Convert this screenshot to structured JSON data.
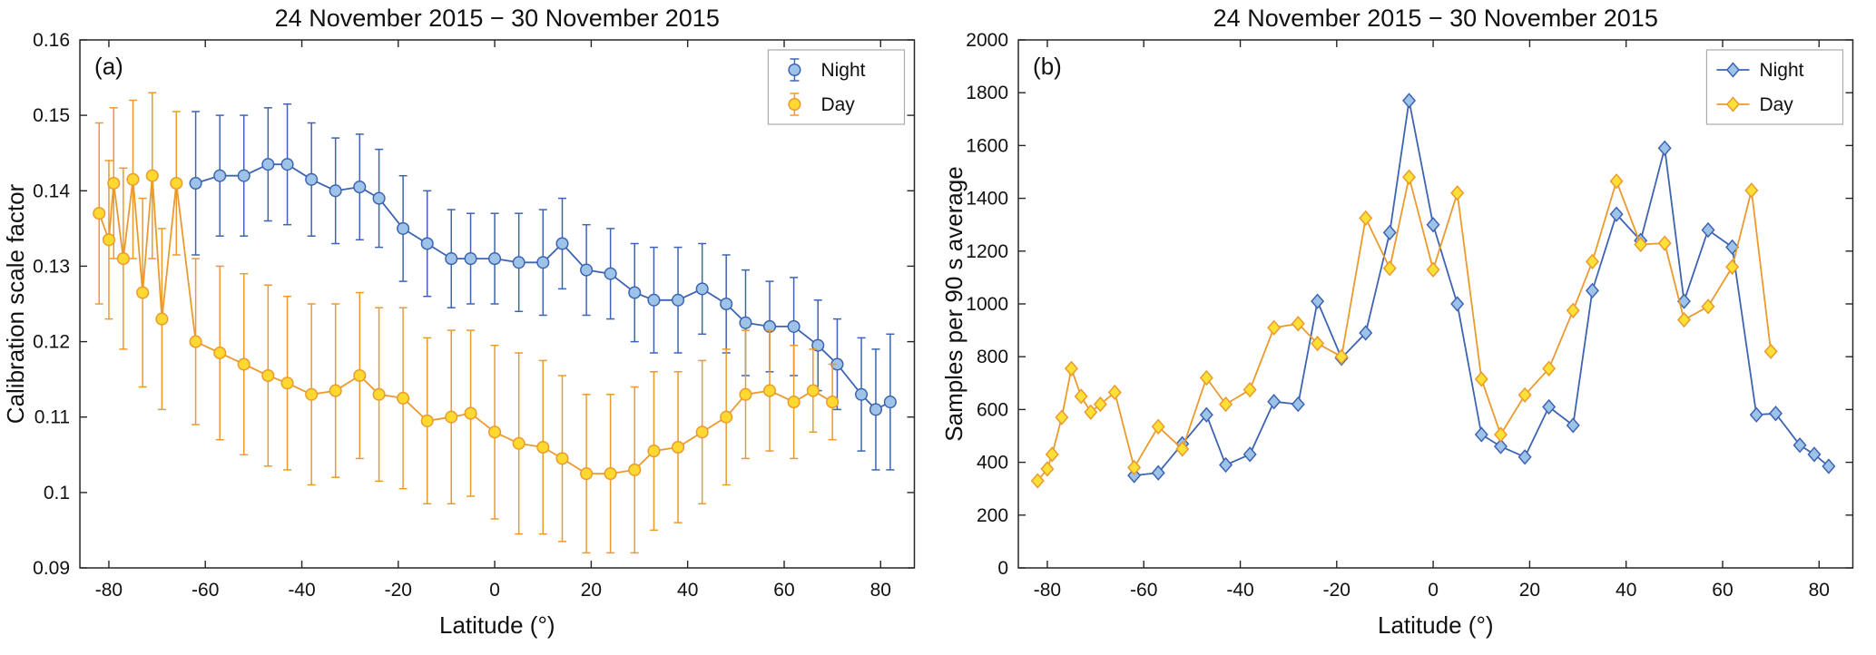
{
  "figure": {
    "background": "#ffffff",
    "axis_color": "#262626",
    "text_color": "#111111",
    "legend_border": "#ababab"
  },
  "chart_data": [
    {
      "type": "line",
      "panel_label": "(a)",
      "title": "24 November 2015 − 30 November 2015",
      "xlabel": "Latitude (°)",
      "ylabel": "Calibration scale factor",
      "xlim": [
        -86,
        87
      ],
      "ylim": [
        0.09,
        0.16
      ],
      "xticks": [
        -80,
        -60,
        -40,
        -20,
        0,
        20,
        40,
        60,
        80
      ],
      "yticks": [
        0.09,
        0.1,
        0.11,
        0.12,
        0.13,
        0.14,
        0.15,
        0.16
      ],
      "ytick_labels": [
        "0.09",
        "0.1",
        "0.11",
        "0.12",
        "0.13",
        "0.14",
        "0.15",
        "0.16"
      ],
      "grid": false,
      "marker": "circle",
      "legend_position": "top-right",
      "series": [
        {
          "name": "Night",
          "line_color": "#3d64b2",
          "marker_fill": "#9dc3e8",
          "x": [
            -62,
            -57,
            -52,
            -47,
            -43,
            -38,
            -33,
            -28,
            -24,
            -19,
            -14,
            -9,
            -5,
            0,
            5,
            10,
            14,
            19,
            24,
            29,
            33,
            38,
            43,
            48,
            52,
            57,
            62,
            67,
            71,
            76,
            79,
            82
          ],
          "y": [
            0.141,
            0.142,
            0.142,
            0.1435,
            0.1435,
            0.1415,
            0.14,
            0.1405,
            0.139,
            0.135,
            0.133,
            0.131,
            0.131,
            0.131,
            0.1305,
            0.1305,
            0.133,
            0.1295,
            0.129,
            0.1265,
            0.1255,
            0.1255,
            0.127,
            0.125,
            0.1225,
            0.122,
            0.122,
            0.1195,
            0.117,
            0.113,
            0.111,
            0.112
          ],
          "err": [
            0.0095,
            0.008,
            0.008,
            0.0075,
            0.008,
            0.0075,
            0.007,
            0.007,
            0.0065,
            0.007,
            0.007,
            0.0065,
            0.006,
            0.006,
            0.0065,
            0.007,
            0.006,
            0.006,
            0.006,
            0.0065,
            0.007,
            0.007,
            0.006,
            0.0065,
            0.007,
            0.006,
            0.0065,
            0.006,
            0.006,
            0.0075,
            0.008,
            0.009
          ]
        },
        {
          "name": "Day",
          "line_color": "#eb9a2e",
          "marker_fill": "#ffd930",
          "x": [
            -82,
            -80,
            -79,
            -77,
            -75,
            -73,
            -71,
            -69,
            -66,
            -62,
            -57,
            -52,
            -47,
            -43,
            -38,
            -33,
            -28,
            -24,
            -19,
            -14,
            -9,
            -5,
            0,
            5,
            10,
            14,
            19,
            24,
            29,
            33,
            38,
            43,
            48,
            52,
            57,
            62,
            66,
            70
          ],
          "y": [
            0.137,
            0.1335,
            0.141,
            0.131,
            0.1415,
            0.1265,
            0.142,
            0.123,
            0.141,
            0.12,
            0.1185,
            0.117,
            0.1155,
            0.1145,
            0.113,
            0.1135,
            0.1155,
            0.113,
            0.1125,
            0.1095,
            0.11,
            0.1105,
            0.108,
            0.1065,
            0.106,
            0.1045,
            0.1025,
            0.1025,
            0.103,
            0.1055,
            0.106,
            0.108,
            0.11,
            0.113,
            0.1135,
            0.112,
            0.1135,
            0.112
          ],
          "err": [
            0.012,
            0.0105,
            0.01,
            0.012,
            0.0105,
            0.0125,
            0.011,
            0.012,
            0.0095,
            0.011,
            0.0115,
            0.012,
            0.012,
            0.0115,
            0.012,
            0.0115,
            0.011,
            0.0115,
            0.012,
            0.011,
            0.0115,
            0.011,
            0.0115,
            0.012,
            0.0115,
            0.011,
            0.0105,
            0.0105,
            0.011,
            0.0105,
            0.01,
            0.0095,
            0.009,
            0.0085,
            0.008,
            0.0075,
            0.0055,
            0.005
          ]
        }
      ]
    },
    {
      "type": "line",
      "panel_label": "(b)",
      "title": "24 November 2015 − 30 November 2015",
      "xlabel": "Latitude (°)",
      "ylabel": "Samples per 90 s average",
      "xlim": [
        -86,
        87
      ],
      "ylim": [
        0,
        2000
      ],
      "xticks": [
        -80,
        -60,
        -40,
        -20,
        0,
        20,
        40,
        60,
        80
      ],
      "yticks": [
        0,
        200,
        400,
        600,
        800,
        1000,
        1200,
        1400,
        1600,
        1800,
        2000
      ],
      "ytick_labels": [
        "0",
        "200",
        "400",
        "600",
        "800",
        "1000",
        "1200",
        "1400",
        "1600",
        "1800",
        "2000"
      ],
      "grid": false,
      "marker": "diamond",
      "legend_position": "top-right",
      "series": [
        {
          "name": "Night",
          "line_color": "#3d64b2",
          "marker_fill": "#9dc3e8",
          "x": [
            -62,
            -57,
            -52,
            -47,
            -43,
            -38,
            -33,
            -28,
            -24,
            -19,
            -14,
            -9,
            -5,
            0,
            5,
            10,
            14,
            19,
            24,
            29,
            33,
            38,
            43,
            48,
            52,
            57,
            62,
            67,
            71,
            76,
            79,
            82
          ],
          "y": [
            350,
            360,
            470,
            580,
            390,
            430,
            630,
            620,
            1010,
            795,
            890,
            1270,
            1770,
            1300,
            1000,
            505,
            460,
            420,
            610,
            540,
            1050,
            1340,
            1240,
            1590,
            1010,
            1280,
            1215,
            580,
            585,
            465,
            430,
            385
          ]
        },
        {
          "name": "Day",
          "line_color": "#eb9a2e",
          "marker_fill": "#ffe135",
          "x": [
            -82,
            -80,
            -79,
            -77,
            -75,
            -73,
            -71,
            -69,
            -66,
            -62,
            -57,
            -52,
            -47,
            -43,
            -38,
            -33,
            -28,
            -24,
            -19,
            -14,
            -9,
            -5,
            0,
            5,
            10,
            14,
            19,
            24,
            29,
            33,
            38,
            43,
            48,
            52,
            57,
            62,
            66,
            70
          ],
          "y": [
            330,
            375,
            430,
            570,
            755,
            650,
            590,
            620,
            665,
            380,
            535,
            450,
            720,
            620,
            675,
            910,
            925,
            850,
            800,
            1325,
            1135,
            1480,
            1130,
            1420,
            715,
            505,
            655,
            755,
            975,
            1160,
            1465,
            1225,
            1230,
            940,
            990,
            1140,
            1430,
            820
          ]
        }
      ]
    }
  ]
}
